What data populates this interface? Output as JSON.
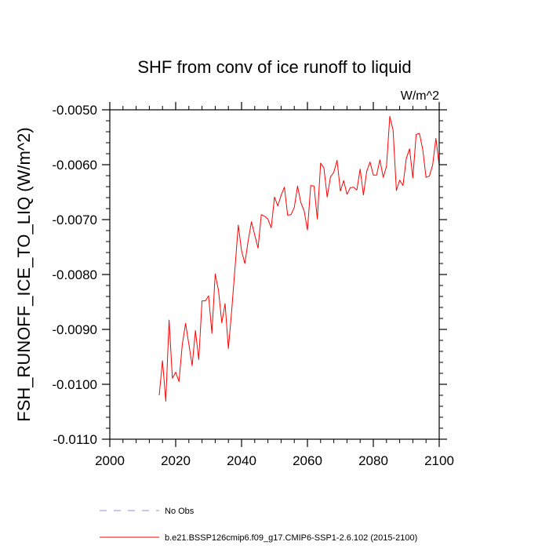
{
  "chart_data": {
    "type": "line",
    "title": "SHF from conv of ice runoff to liquid",
    "units": "W/m^2",
    "xlabel": "",
    "ylabel": "FSH_RUNOFF_ICE_TO_LIQ  (W/m^2)",
    "xlim": [
      2000,
      2100
    ],
    "ylim": [
      -0.011,
      -0.005
    ],
    "xticks": [
      2000,
      2020,
      2040,
      2060,
      2080,
      2100
    ],
    "xtick_labels": [
      "2000",
      "2020",
      "2040",
      "2060",
      "2080",
      "2100"
    ],
    "yticks": [
      -0.005,
      -0.006,
      -0.007,
      -0.008,
      -0.009,
      -0.01,
      -0.011
    ],
    "ytick_labels": [
      "-0.0050",
      "-0.0060",
      "-0.0070",
      "-0.0080",
      "-0.0090",
      "-0.0100",
      "-0.0110"
    ],
    "grid": false,
    "legend": [
      {
        "label": "No Obs",
        "color": "#8f8fe0",
        "style": "dashed"
      },
      {
        "label": "b.e21.BSSP126cmip6.f09_g17.CMIP6-SSP1-2.6.102 (2015-2100)",
        "color": "#ff0000",
        "style": "solid"
      }
    ],
    "series": [
      {
        "name": "b.e21.BSSP126cmip6.f09_g17.CMIP6-SSP1-2.6.102 (2015-2100)",
        "color": "#ff0000",
        "x": [
          2015,
          2016,
          2017,
          2018,
          2019,
          2020,
          2021,
          2022,
          2023,
          2024,
          2025,
          2026,
          2027,
          2028,
          2029,
          2030,
          2031,
          2032,
          2033,
          2034,
          2035,
          2036,
          2037,
          2038,
          2039,
          2040,
          2041,
          2042,
          2043,
          2044,
          2045,
          2046,
          2047,
          2048,
          2049,
          2050,
          2051,
          2052,
          2053,
          2054,
          2055,
          2056,
          2057,
          2058,
          2059,
          2060,
          2061,
          2062,
          2063,
          2064,
          2065,
          2066,
          2067,
          2068,
          2069,
          2070,
          2071,
          2072,
          2073,
          2074,
          2075,
          2076,
          2077,
          2078,
          2079,
          2080,
          2081,
          2082,
          2083,
          2084,
          2085,
          2086,
          2087,
          2088,
          2089,
          2090,
          2091,
          2092,
          2093,
          2094,
          2095,
          2096,
          2097,
          2098,
          2099,
          2100
        ],
        "values": [
          -0.0102,
          -0.00957,
          -0.01031,
          -0.00883,
          -0.00989,
          -0.00978,
          -0.00995,
          -0.00928,
          -0.00889,
          -0.00927,
          -0.00966,
          -0.00902,
          -0.00955,
          -0.00848,
          -0.00848,
          -0.00839,
          -0.00907,
          -0.00799,
          -0.00829,
          -0.00888,
          -0.00853,
          -0.00935,
          -0.00866,
          -0.00789,
          -0.0071,
          -0.00757,
          -0.0078,
          -0.00739,
          -0.00704,
          -0.00728,
          -0.00752,
          -0.00691,
          -0.00694,
          -0.00699,
          -0.00715,
          -0.00659,
          -0.00675,
          -0.00656,
          -0.00641,
          -0.00692,
          -0.00691,
          -0.00678,
          -0.00639,
          -0.00669,
          -0.00684,
          -0.00719,
          -0.00638,
          -0.00639,
          -0.00699,
          -0.00597,
          -0.00606,
          -0.00659,
          -0.00622,
          -0.00614,
          -0.00592,
          -0.00648,
          -0.00629,
          -0.00654,
          -0.00642,
          -0.00641,
          -0.00646,
          -0.00608,
          -0.00655,
          -0.00612,
          -0.00595,
          -0.00619,
          -0.00619,
          -0.00591,
          -0.00623,
          -0.00603,
          -0.00512,
          -0.00537,
          -0.00647,
          -0.00628,
          -0.00638,
          -0.00589,
          -0.00571,
          -0.00624,
          -0.00545,
          -0.00543,
          -0.00572,
          -0.00623,
          -0.00621,
          -0.00601,
          -0.00552,
          -0.00601
        ]
      }
    ]
  }
}
